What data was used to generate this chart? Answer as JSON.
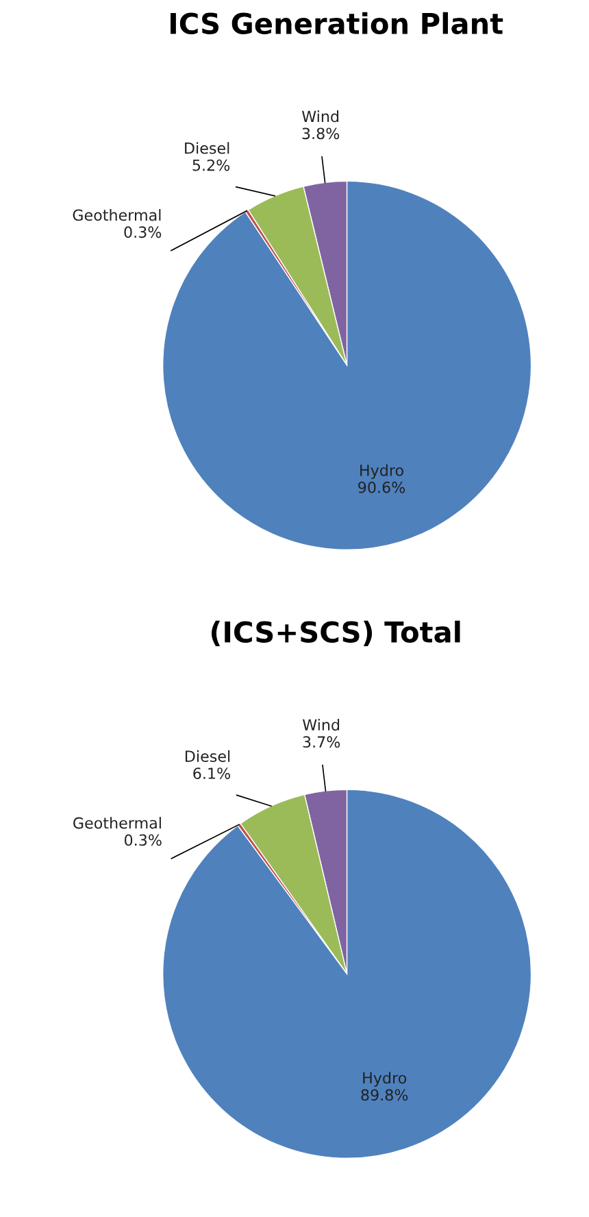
{
  "chart_data": [
    {
      "type": "pie",
      "title": "ICS Generation Plant",
      "categories": [
        "Wind",
        "Diesel",
        "Geothermal",
        "Hydro"
      ],
      "values": [
        3.8,
        5.2,
        0.3,
        90.6
      ],
      "value_labels": [
        "3.8%",
        "5.2%",
        "0.3%",
        "90.6%"
      ],
      "colors": [
        "#8064a2",
        "#9bbb59",
        "#c0504d",
        "#4f81bd"
      ]
    },
    {
      "type": "pie",
      "title": "(ICS+SCS) Total",
      "categories": [
        "Wind",
        "Diesel",
        "Geothermal",
        "Hydro"
      ],
      "values": [
        3.7,
        6.1,
        0.3,
        89.8
      ],
      "value_labels": [
        "3.7%",
        "6.1%",
        "0.3%",
        "89.8%"
      ],
      "colors": [
        "#8064a2",
        "#9bbb59",
        "#c0504d",
        "#4f81bd"
      ]
    }
  ]
}
